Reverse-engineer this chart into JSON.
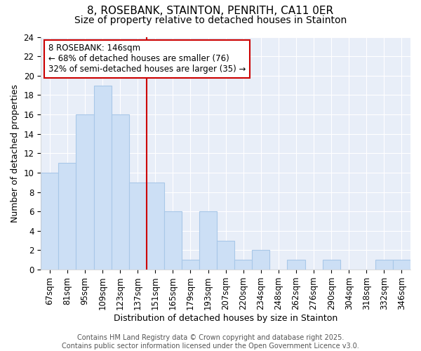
{
  "title1": "8, ROSEBANK, STAINTON, PENRITH, CA11 0ER",
  "title2": "Size of property relative to detached houses in Stainton",
  "xlabel": "Distribution of detached houses by size in Stainton",
  "ylabel": "Number of detached properties",
  "bar_labels": [
    "67sqm",
    "81sqm",
    "95sqm",
    "109sqm",
    "123sqm",
    "137sqm",
    "151sqm",
    "165sqm",
    "179sqm",
    "193sqm",
    "207sqm",
    "220sqm",
    "234sqm",
    "248sqm",
    "262sqm",
    "276sqm",
    "290sqm",
    "304sqm",
    "318sqm",
    "332sqm",
    "346sqm"
  ],
  "bar_values": [
    10,
    11,
    16,
    19,
    16,
    9,
    9,
    6,
    1,
    6,
    3,
    1,
    2,
    0,
    1,
    0,
    1,
    0,
    0,
    1,
    1
  ],
  "bar_color": "#ccdff5",
  "bar_edgecolor": "#a8c8e8",
  "vline_x": 6.0,
  "vline_color": "#cc0000",
  "annotation_line1": "8 ROSEBANK: 146sqm",
  "annotation_line2": "← 68% of detached houses are smaller (76)",
  "annotation_line3": "32% of semi-detached houses are larger (35) →",
  "ylim": [
    0,
    24
  ],
  "yticks": [
    0,
    2,
    4,
    6,
    8,
    10,
    12,
    14,
    16,
    18,
    20,
    22,
    24
  ],
  "footer_text": "Contains HM Land Registry data © Crown copyright and database right 2025.\nContains public sector information licensed under the Open Government Licence v3.0.",
  "fig_bg_color": "#ffffff",
  "plot_bg_color": "#e8eef8",
  "grid_color": "#ffffff",
  "title_fontsize": 11,
  "subtitle_fontsize": 10,
  "axis_label_fontsize": 9,
  "tick_fontsize": 8.5,
  "footer_fontsize": 7,
  "annot_fontsize": 8.5
}
